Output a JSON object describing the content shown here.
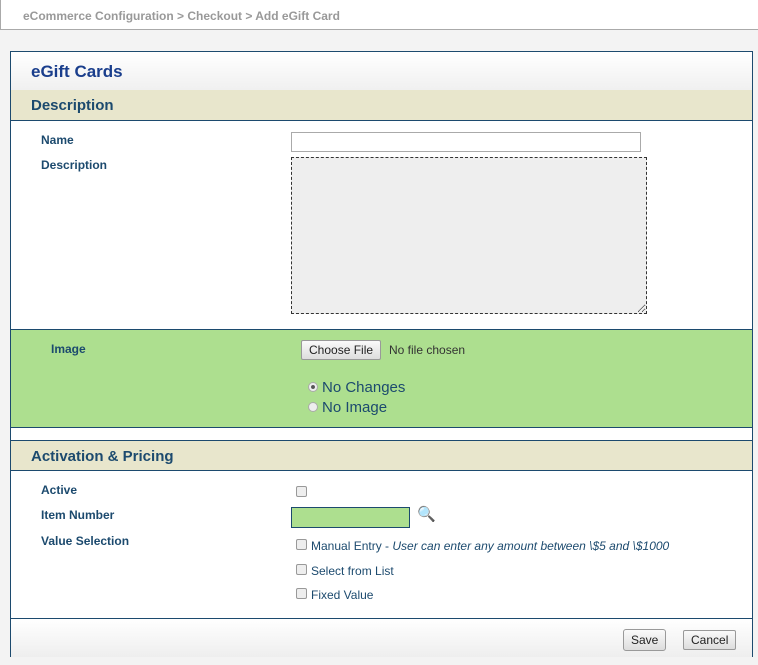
{
  "breadcrumb": "eCommerce Configuration > Checkout > Add eGift Card",
  "title": "eGift Cards",
  "description_section": {
    "header": "Description",
    "name_label": "Name",
    "name_value": "",
    "description_label": "Description",
    "description_value": ""
  },
  "image_section": {
    "label": "Image",
    "choose_file": "Choose File",
    "file_status": "No file chosen",
    "options": [
      {
        "label": "No Changes",
        "checked": true
      },
      {
        "label": "No Image",
        "checked": false
      }
    ]
  },
  "activation_section": {
    "header": "Activation & Pricing",
    "active_label": "Active",
    "active_checked": false,
    "item_number_label": "Item Number",
    "item_number_value": "",
    "value_selection_label": "Value Selection",
    "options": [
      {
        "label": "Manual Entry",
        "note": " - ",
        "italic": "User can enter any amount between \\$5 and \\$1000",
        "checked": false
      },
      {
        "label": "Select from List",
        "checked": false
      },
      {
        "label": "Fixed Value",
        "checked": false
      }
    ]
  },
  "footer": {
    "save": "Save",
    "cancel": "Cancel"
  },
  "colors": {
    "accent": "#1c4a6e",
    "highlight": "#addf8f",
    "section_header": "#e8e6cc"
  },
  "icons": {
    "lookup": "magnifier-icon"
  }
}
